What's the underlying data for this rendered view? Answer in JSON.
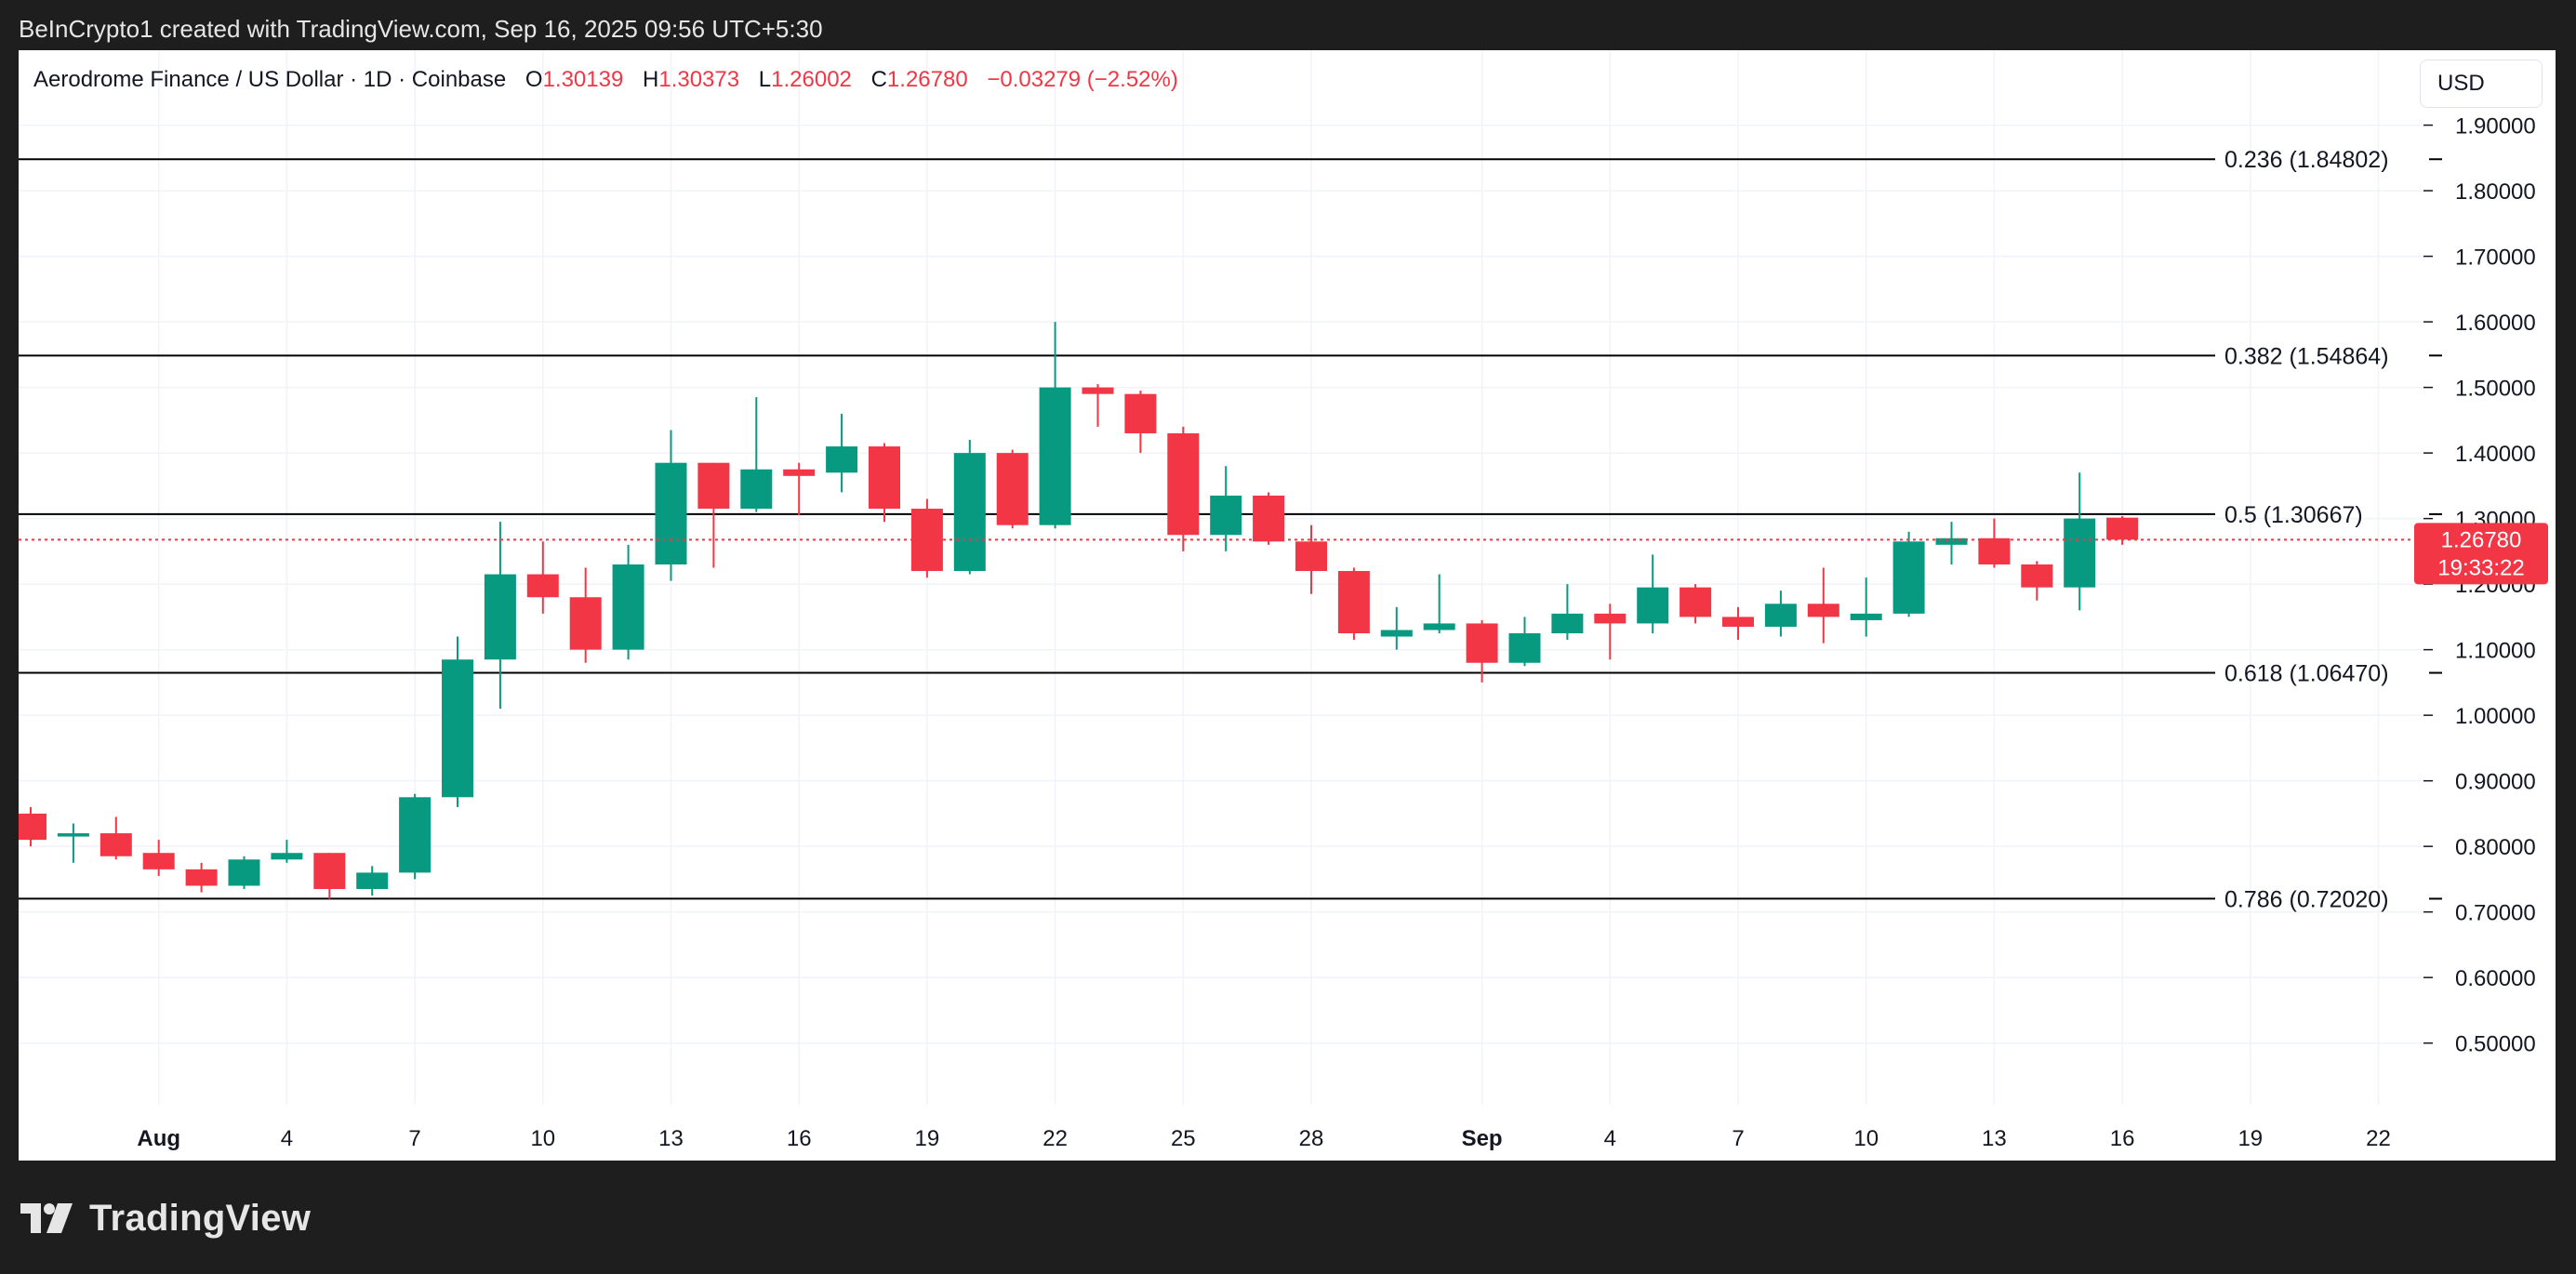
{
  "caption": "BeInCrypto1 created with TradingView.com, Sep 16, 2025 09:56 UTC+5:30",
  "header": {
    "symbol": "Aerodrome Finance / US Dollar · 1D · Coinbase",
    "open_key": "O",
    "open": "1.30139",
    "high_key": "H",
    "high": "1.30373",
    "low_key": "L",
    "low": "1.26002",
    "close_key": "C",
    "close": "1.26780",
    "change": "−0.03279 (−2.52%)"
  },
  "currency_button": "USD",
  "footer": {
    "brand": "TradingView"
  },
  "colors": {
    "up": "#089981",
    "down": "#f23645",
    "grid": "#f0f3fa",
    "fib_line": "#000000"
  },
  "chart_data": {
    "type": "candlestick",
    "x_start": "2025-07-29",
    "ylim": [
      0.44,
      1.915
    ],
    "y_ticks": [
      "0.50000",
      "0.60000",
      "0.70000",
      "0.80000",
      "0.90000",
      "1.00000",
      "1.10000",
      "1.20000",
      "1.30000",
      "1.40000",
      "1.50000",
      "1.60000",
      "1.70000",
      "1.80000",
      "1.90000"
    ],
    "x_ticks": [
      {
        "date": "2025-08-01",
        "label": "Aug",
        "bold": true
      },
      {
        "date": "2025-08-04",
        "label": "4"
      },
      {
        "date": "2025-08-07",
        "label": "7"
      },
      {
        "date": "2025-08-10",
        "label": "10"
      },
      {
        "date": "2025-08-13",
        "label": "13"
      },
      {
        "date": "2025-08-16",
        "label": "16"
      },
      {
        "date": "2025-08-19",
        "label": "19"
      },
      {
        "date": "2025-08-22",
        "label": "22"
      },
      {
        "date": "2025-08-25",
        "label": "25"
      },
      {
        "date": "2025-08-28",
        "label": "28"
      },
      {
        "date": "2025-09-01",
        "label": "Sep",
        "bold": true
      },
      {
        "date": "2025-09-04",
        "label": "4"
      },
      {
        "date": "2025-09-07",
        "label": "7"
      },
      {
        "date": "2025-09-10",
        "label": "10"
      },
      {
        "date": "2025-09-13",
        "label": "13"
      },
      {
        "date": "2025-09-16",
        "label": "16"
      },
      {
        "date": "2025-09-19",
        "label": "19"
      },
      {
        "date": "2025-09-22",
        "label": "22"
      }
    ],
    "candles": [
      {
        "date": "2025-07-29",
        "o": 0.85,
        "h": 0.86,
        "l": 0.8,
        "c": 0.81
      },
      {
        "date": "2025-07-30",
        "o": 0.815,
        "h": 0.835,
        "l": 0.775,
        "c": 0.82
      },
      {
        "date": "2025-07-31",
        "o": 0.82,
        "h": 0.845,
        "l": 0.78,
        "c": 0.785
      },
      {
        "date": "2025-08-01",
        "o": 0.79,
        "h": 0.81,
        "l": 0.755,
        "c": 0.765
      },
      {
        "date": "2025-08-02",
        "o": 0.765,
        "h": 0.775,
        "l": 0.73,
        "c": 0.74
      },
      {
        "date": "2025-08-03",
        "o": 0.74,
        "h": 0.785,
        "l": 0.735,
        "c": 0.78
      },
      {
        "date": "2025-08-04",
        "o": 0.78,
        "h": 0.81,
        "l": 0.775,
        "c": 0.79
      },
      {
        "date": "2025-08-05",
        "o": 0.79,
        "h": 0.79,
        "l": 0.72,
        "c": 0.735
      },
      {
        "date": "2025-08-06",
        "o": 0.735,
        "h": 0.77,
        "l": 0.725,
        "c": 0.76
      },
      {
        "date": "2025-08-07",
        "o": 0.76,
        "h": 0.88,
        "l": 0.75,
        "c": 0.875
      },
      {
        "date": "2025-08-08",
        "o": 0.875,
        "h": 1.12,
        "l": 0.86,
        "c": 1.085
      },
      {
        "date": "2025-08-09",
        "o": 1.085,
        "h": 1.295,
        "l": 1.01,
        "c": 1.215
      },
      {
        "date": "2025-08-10",
        "o": 1.215,
        "h": 1.265,
        "l": 1.155,
        "c": 1.18
      },
      {
        "date": "2025-08-11",
        "o": 1.18,
        "h": 1.225,
        "l": 1.08,
        "c": 1.1
      },
      {
        "date": "2025-08-12",
        "o": 1.1,
        "h": 1.26,
        "l": 1.085,
        "c": 1.23
      },
      {
        "date": "2025-08-13",
        "o": 1.23,
        "h": 1.435,
        "l": 1.205,
        "c": 1.385
      },
      {
        "date": "2025-08-14",
        "o": 1.385,
        "h": 1.385,
        "l": 1.225,
        "c": 1.315
      },
      {
        "date": "2025-08-15",
        "o": 1.315,
        "h": 1.485,
        "l": 1.31,
        "c": 1.375
      },
      {
        "date": "2025-08-16",
        "o": 1.375,
        "h": 1.385,
        "l": 1.305,
        "c": 1.365
      },
      {
        "date": "2025-08-17",
        "o": 1.37,
        "h": 1.46,
        "l": 1.34,
        "c": 1.41
      },
      {
        "date": "2025-08-18",
        "o": 1.41,
        "h": 1.415,
        "l": 1.295,
        "c": 1.315
      },
      {
        "date": "2025-08-19",
        "o": 1.315,
        "h": 1.33,
        "l": 1.21,
        "c": 1.22
      },
      {
        "date": "2025-08-20",
        "o": 1.22,
        "h": 1.42,
        "l": 1.215,
        "c": 1.4
      },
      {
        "date": "2025-08-21",
        "o": 1.4,
        "h": 1.405,
        "l": 1.285,
        "c": 1.29
      },
      {
        "date": "2025-08-22",
        "o": 1.29,
        "h": 1.6,
        "l": 1.285,
        "c": 1.5
      },
      {
        "date": "2025-08-23",
        "o": 1.5,
        "h": 1.505,
        "l": 1.44,
        "c": 1.49
      },
      {
        "date": "2025-08-24",
        "o": 1.49,
        "h": 1.495,
        "l": 1.4,
        "c": 1.43
      },
      {
        "date": "2025-08-25",
        "o": 1.43,
        "h": 1.44,
        "l": 1.25,
        "c": 1.275
      },
      {
        "date": "2025-08-26",
        "o": 1.275,
        "h": 1.38,
        "l": 1.25,
        "c": 1.335
      },
      {
        "date": "2025-08-27",
        "o": 1.335,
        "h": 1.34,
        "l": 1.26,
        "c": 1.265
      },
      {
        "date": "2025-08-28",
        "o": 1.265,
        "h": 1.29,
        "l": 1.185,
        "c": 1.22
      },
      {
        "date": "2025-08-29",
        "o": 1.22,
        "h": 1.225,
        "l": 1.115,
        "c": 1.125
      },
      {
        "date": "2025-08-30",
        "o": 1.12,
        "h": 1.165,
        "l": 1.1,
        "c": 1.13
      },
      {
        "date": "2025-08-31",
        "o": 1.13,
        "h": 1.215,
        "l": 1.125,
        "c": 1.14
      },
      {
        "date": "2025-09-01",
        "o": 1.14,
        "h": 1.145,
        "l": 1.05,
        "c": 1.08
      },
      {
        "date": "2025-09-02",
        "o": 1.08,
        "h": 1.15,
        "l": 1.075,
        "c": 1.125
      },
      {
        "date": "2025-09-03",
        "o": 1.125,
        "h": 1.2,
        "l": 1.115,
        "c": 1.155
      },
      {
        "date": "2025-09-04",
        "o": 1.155,
        "h": 1.17,
        "l": 1.085,
        "c": 1.14
      },
      {
        "date": "2025-09-05",
        "o": 1.14,
        "h": 1.245,
        "l": 1.125,
        "c": 1.195
      },
      {
        "date": "2025-09-06",
        "o": 1.195,
        "h": 1.2,
        "l": 1.14,
        "c": 1.15
      },
      {
        "date": "2025-09-07",
        "o": 1.15,
        "h": 1.165,
        "l": 1.115,
        "c": 1.135
      },
      {
        "date": "2025-09-08",
        "o": 1.135,
        "h": 1.19,
        "l": 1.12,
        "c": 1.17
      },
      {
        "date": "2025-09-09",
        "o": 1.17,
        "h": 1.225,
        "l": 1.11,
        "c": 1.15
      },
      {
        "date": "2025-09-10",
        "o": 1.145,
        "h": 1.21,
        "l": 1.12,
        "c": 1.155
      },
      {
        "date": "2025-09-11",
        "o": 1.155,
        "h": 1.28,
        "l": 1.15,
        "c": 1.265
      },
      {
        "date": "2025-09-12",
        "o": 1.26,
        "h": 1.295,
        "l": 1.23,
        "c": 1.27
      },
      {
        "date": "2025-09-13",
        "o": 1.27,
        "h": 1.3,
        "l": 1.225,
        "c": 1.23
      },
      {
        "date": "2025-09-14",
        "o": 1.23,
        "h": 1.235,
        "l": 1.175,
        "c": 1.195
      },
      {
        "date": "2025-09-15",
        "o": 1.195,
        "h": 1.37,
        "l": 1.16,
        "c": 1.3
      },
      {
        "date": "2025-09-16",
        "o": 1.30139,
        "h": 1.30373,
        "l": 1.26002,
        "c": 1.2678
      }
    ],
    "fib_levels": [
      {
        "ratio": "0.236",
        "value": 1.84802,
        "label": "0.236 (1.84802)"
      },
      {
        "ratio": "0.382",
        "value": 1.54864,
        "label": "0.382 (1.54864)"
      },
      {
        "ratio": "0.5",
        "value": 1.30667,
        "label": "0.5 (1.30667)"
      },
      {
        "ratio": "0.618",
        "value": 1.0647,
        "label": "0.618 (1.06470)"
      },
      {
        "ratio": "0.786",
        "value": 0.7202,
        "label": "0.786 (0.72020)"
      }
    ],
    "last_price": {
      "value": 1.2678,
      "label": "1.26780",
      "countdown": "19:33:22"
    }
  }
}
